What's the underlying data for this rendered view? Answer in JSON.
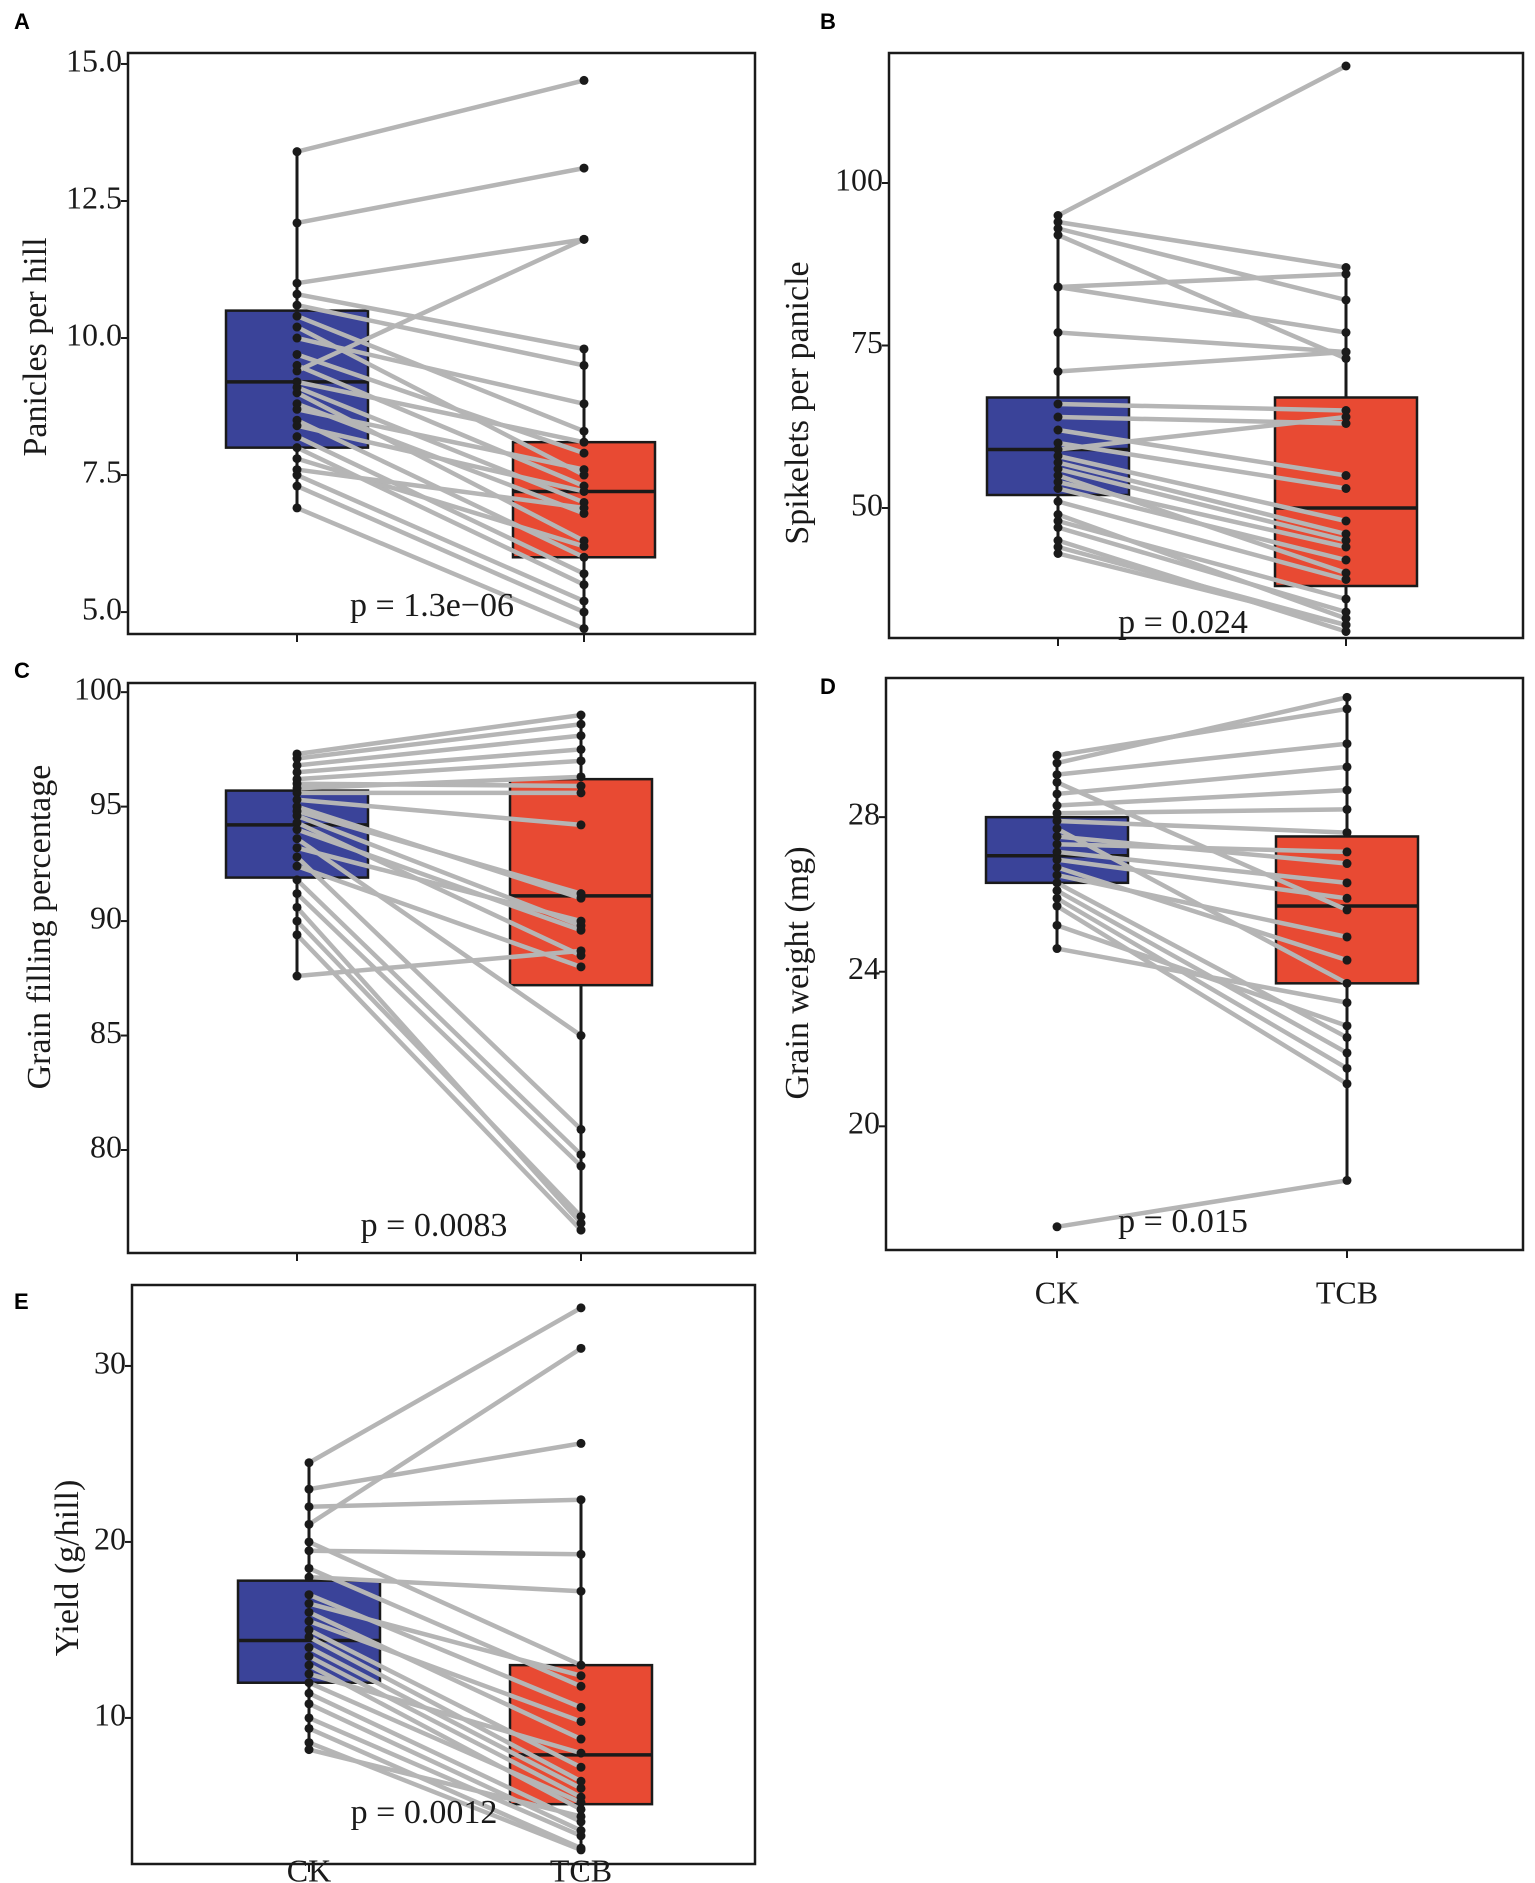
{
  "figure": {
    "colors": {
      "CK": "#3a4399",
      "TCB": "#e84a33",
      "line": "#b5b5b5",
      "dot": "#1a1a1a"
    }
  },
  "chart_data": [
    {
      "type": "boxplot-paired",
      "panel": "A",
      "ylabel": "Panicles per hill",
      "categories": [
        "CK",
        "TCB"
      ],
      "show_xticklabels": false,
      "ylim": [
        4.6,
        15.2
      ],
      "yticks": [
        5.0,
        7.5,
        10.0,
        12.5,
        15.0
      ],
      "ytick_labels": [
        "5.0",
        "7.5",
        "10.0",
        "12.5",
        "15.0"
      ],
      "pvalue": "p = 1.3e−06",
      "boxes": [
        {
          "group": "CK",
          "q1": 8.0,
          "median": 9.2,
          "q3": 10.5,
          "whisker_low": 6.9,
          "whisker_high": 13.4
        },
        {
          "group": "TCB",
          "q1": 6.0,
          "median": 7.2,
          "q3": 8.1,
          "whisker_low": 4.7,
          "whisker_high": 9.8
        }
      ],
      "pairs": [
        [
          13.4,
          14.7
        ],
        [
          12.1,
          13.1
        ],
        [
          11.0,
          11.8
        ],
        [
          10.8,
          9.8
        ],
        [
          10.6,
          9.5
        ],
        [
          10.4,
          8.3
        ],
        [
          10.2,
          7.5
        ],
        [
          10.0,
          8.8
        ],
        [
          9.7,
          7.9
        ],
        [
          9.5,
          7.3
        ],
        [
          9.4,
          11.8
        ],
        [
          9.2,
          8.1
        ],
        [
          9.1,
          7.0
        ],
        [
          9.0,
          6.3
        ],
        [
          8.8,
          6.8
        ],
        [
          8.7,
          7.6
        ],
        [
          8.5,
          6.0
        ],
        [
          8.4,
          7.2
        ],
        [
          8.2,
          5.7
        ],
        [
          8.0,
          5.5
        ],
        [
          7.8,
          6.2
        ],
        [
          7.6,
          6.9
        ],
        [
          7.5,
          5.2
        ],
        [
          7.3,
          5.0
        ],
        [
          6.9,
          4.7
        ]
      ]
    },
    {
      "type": "boxplot-paired",
      "panel": "B",
      "ylabel": "Spikelets per panicle",
      "categories": [
        "CK",
        "TCB"
      ],
      "show_xticklabels": false,
      "ylim": [
        30,
        120
      ],
      "yticks": [
        50,
        75,
        100
      ],
      "ytick_labels": [
        "50",
        "75",
        "100"
      ],
      "pvalue": "p = 0.024",
      "boxes": [
        {
          "group": "CK",
          "q1": 52,
          "median": 59,
          "q3": 67,
          "whisker_low": 43,
          "whisker_high": 95
        },
        {
          "group": "TCB",
          "q1": 38,
          "median": 50,
          "q3": 67,
          "whisker_low": 31,
          "whisker_high": 87
        }
      ],
      "pairs": [
        [
          95,
          118
        ],
        [
          94,
          87
        ],
        [
          93,
          82
        ],
        [
          92,
          73
        ],
        [
          84,
          86
        ],
        [
          84,
          77
        ],
        [
          77,
          74
        ],
        [
          71,
          74
        ],
        [
          66,
          65
        ],
        [
          64,
          63
        ],
        [
          62,
          55
        ],
        [
          60,
          53
        ],
        [
          59,
          64
        ],
        [
          58,
          48
        ],
        [
          57,
          46
        ],
        [
          56,
          45
        ],
        [
          55,
          40
        ],
        [
          54,
          44
        ],
        [
          53,
          42
        ],
        [
          51,
          39
        ],
        [
          49,
          33
        ],
        [
          48,
          36
        ],
        [
          47,
          34
        ],
        [
          45,
          31
        ],
        [
          44,
          32
        ],
        [
          43,
          32
        ]
      ]
    },
    {
      "type": "boxplot-paired",
      "panel": "C",
      "ylabel": "Grain filling percentage",
      "categories": [
        "CK",
        "TCB"
      ],
      "show_xticklabels": false,
      "ylim": [
        75.5,
        100.4
      ],
      "yticks": [
        80,
        85,
        90,
        95,
        100
      ],
      "ytick_labels": [
        "80",
        "85",
        "90",
        "95",
        "100"
      ],
      "pvalue": "p = 0.0083",
      "boxes": [
        {
          "group": "CK",
          "q1": 91.9,
          "median": 94.2,
          "q3": 95.7,
          "whisker_low": 87.6,
          "whisker_high": 97.3
        },
        {
          "group": "TCB",
          "q1": 87.2,
          "median": 91.1,
          "q3": 96.2,
          "whisker_low": 76.5,
          "whisker_high": 99.0
        }
      ],
      "pairs": [
        [
          97.3,
          99.0
        ],
        [
          97.1,
          98.6
        ],
        [
          96.8,
          98.1
        ],
        [
          96.5,
          97.5
        ],
        [
          96.2,
          97.0
        ],
        [
          96.0,
          95.9
        ],
        [
          95.8,
          96.3
        ],
        [
          95.6,
          95.6
        ],
        [
          95.3,
          94.2
        ],
        [
          95.0,
          91.0
        ],
        [
          94.8,
          91.2
        ],
        [
          94.6,
          89.8
        ],
        [
          94.3,
          88.5
        ],
        [
          94.0,
          89.6
        ],
        [
          93.6,
          85.0
        ],
        [
          93.2,
          90.0
        ],
        [
          92.8,
          80.9
        ],
        [
          92.4,
          88.0
        ],
        [
          91.8,
          79.8
        ],
        [
          91.2,
          79.3
        ],
        [
          90.6,
          76.8
        ],
        [
          90.0,
          77.1
        ],
        [
          89.4,
          76.5
        ],
        [
          87.6,
          88.7
        ]
      ]
    },
    {
      "type": "boxplot-paired",
      "panel": "D",
      "ylabel": "Grain weight (mg)",
      "categories": [
        "CK",
        "TCB"
      ],
      "show_xticklabels": true,
      "ylim": [
        16.8,
        31.6
      ],
      "yticks": [
        20,
        24,
        28
      ],
      "ytick_labels": [
        "20",
        "24",
        "28"
      ],
      "pvalue": "p = 0.015",
      "boxes": [
        {
          "group": "CK",
          "q1": 26.3,
          "median": 27.0,
          "q3": 28.0,
          "whisker_low": 24.6,
          "whisker_high": 29.6
        },
        {
          "group": "TCB",
          "q1": 23.7,
          "median": 25.7,
          "q3": 27.5,
          "whisker_low": 18.6,
          "whisker_high": 31.1
        }
      ],
      "pairs": [
        [
          29.6,
          30.8
        ],
        [
          29.4,
          31.1
        ],
        [
          29.1,
          29.9
        ],
        [
          28.9,
          25.6
        ],
        [
          28.6,
          29.3
        ],
        [
          28.3,
          28.7
        ],
        [
          28.1,
          28.2
        ],
        [
          27.9,
          27.6
        ],
        [
          27.7,
          23.7
        ],
        [
          27.5,
          26.8
        ],
        [
          27.3,
          27.1
        ],
        [
          27.1,
          26.3
        ],
        [
          26.9,
          25.9
        ],
        [
          26.7,
          24.3
        ],
        [
          26.5,
          24.9
        ],
        [
          26.3,
          22.3
        ],
        [
          26.1,
          21.9
        ],
        [
          25.9,
          21.5
        ],
        [
          25.7,
          21.1
        ],
        [
          25.2,
          22.6
        ],
        [
          24.6,
          23.2
        ],
        [
          17.4,
          18.6
        ]
      ]
    },
    {
      "type": "boxplot-paired",
      "panel": "E",
      "ylabel": "Yield  (g/hill)",
      "categories": [
        "CK",
        "TCB"
      ],
      "show_xticklabels": true,
      "ylim": [
        1.7,
        34.6
      ],
      "yticks": [
        10,
        20,
        30
      ],
      "ytick_labels": [
        "10",
        "20",
        "30"
      ],
      "pvalue": "p = 0.0012",
      "boxes": [
        {
          "group": "CK",
          "q1": 12.0,
          "median": 14.4,
          "q3": 17.8,
          "whisker_low": 8.2,
          "whisker_high": 24.5
        },
        {
          "group": "TCB",
          "q1": 5.1,
          "median": 7.9,
          "q3": 13.0,
          "whisker_low": 2.5,
          "whisker_high": 22.5
        }
      ],
      "pairs": [
        [
          24.5,
          33.3
        ],
        [
          23.0,
          25.6
        ],
        [
          22.0,
          22.4
        ],
        [
          21.0,
          31.0
        ],
        [
          20.0,
          13.0
        ],
        [
          19.5,
          19.3
        ],
        [
          18.5,
          11.8
        ],
        [
          18.0,
          17.2
        ],
        [
          17.0,
          10.6
        ],
        [
          16.5,
          12.4
        ],
        [
          16.0,
          8.8
        ],
        [
          15.5,
          9.8
        ],
        [
          15.0,
          7.2
        ],
        [
          14.6,
          6.4
        ],
        [
          14.0,
          6.0
        ],
        [
          13.5,
          5.5
        ],
        [
          13.0,
          4.8
        ],
        [
          12.5,
          8.0
        ],
        [
          12.0,
          5.2
        ],
        [
          11.4,
          4.1
        ],
        [
          10.8,
          3.6
        ],
        [
          10.0,
          3.3
        ],
        [
          9.4,
          2.6
        ],
        [
          8.6,
          2.5
        ],
        [
          8.2,
          4.4
        ]
      ]
    }
  ]
}
